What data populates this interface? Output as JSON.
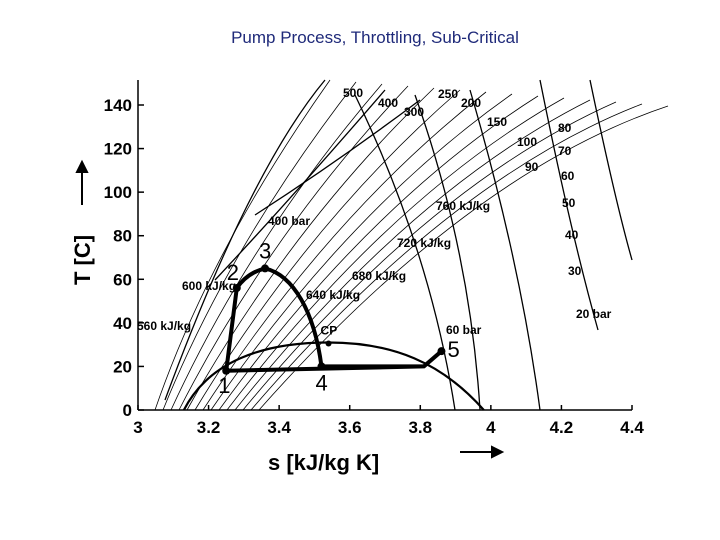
{
  "slide": {
    "title": "Pump Process, Throttling, Sub-Critical"
  },
  "chart_data": {
    "type": "line",
    "xlabel": "s [kJ/kg K]",
    "ylabel": "T [C]",
    "xlim": [
      3,
      4.4
    ],
    "ylim": [
      0,
      150
    ],
    "x_ticks": [
      "3",
      "3.2",
      "3.4",
      "3.6",
      "3.8",
      "4",
      "4.2",
      "4.4"
    ],
    "y_ticks": [
      "0",
      "20",
      "40",
      "60",
      "80",
      "100",
      "120",
      "140"
    ],
    "critical_point": {
      "label": "CP",
      "s": 3.54,
      "T": 31
    },
    "cycle": {
      "points": [
        {
          "label": "1",
          "s": 3.25,
          "T": 18
        },
        {
          "label": "2",
          "s": 3.28,
          "T": 56
        },
        {
          "label": "3",
          "s": 3.36,
          "T": 65
        },
        {
          "label": "4",
          "s": 3.52,
          "T": 20
        },
        {
          "label": "5",
          "s": 3.86,
          "T": 27
        }
      ]
    },
    "isobar_labels": [
      "500",
      "400",
      "300",
      "250",
      "200",
      "150",
      "100",
      "90",
      "80",
      "70",
      "60",
      "50",
      "40",
      "30",
      "20 bar",
      "400 bar",
      "60 bar"
    ],
    "isenthalp_labels": [
      "760 kJ/kg",
      "720 kJ/kg",
      "680 kJ/kg",
      "640 kJ/kg",
      "600 kJ/kg",
      "560 kJ/kg"
    ],
    "grid": false
  }
}
